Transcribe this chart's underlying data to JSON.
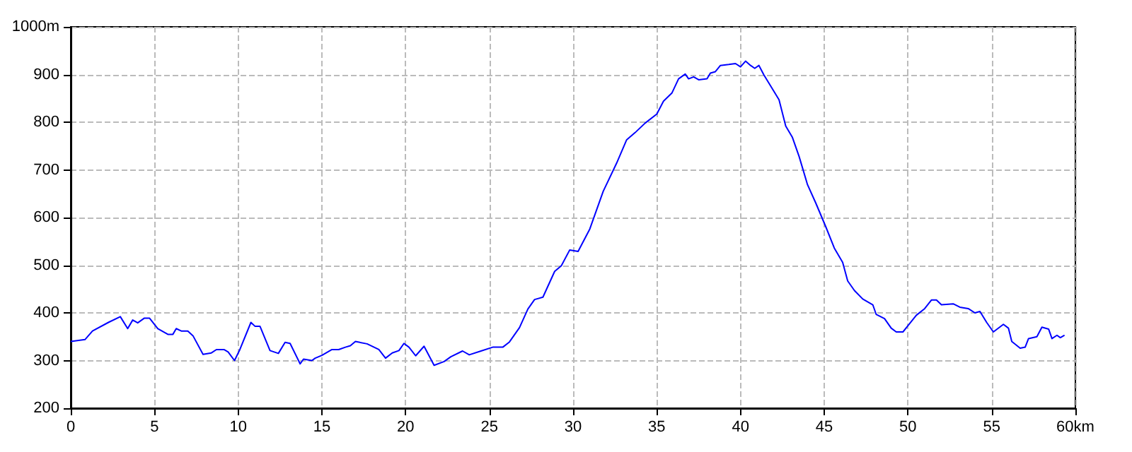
{
  "chart_data": {
    "type": "line",
    "color": "#0000ff",
    "marker": "none",
    "line_style": "solid",
    "grid": true,
    "x": [
      0,
      0.85,
      1.3,
      2.25,
      2.96,
      3.4,
      3.7,
      4.0,
      4.4,
      4.7,
      5.2,
      5.8,
      6.1,
      6.3,
      6.6,
      6.99,
      7.3,
      7.9,
      8.4,
      8.7,
      9.15,
      9.4,
      9.78,
      10.1,
      10.76,
      11.0,
      11.3,
      11.9,
      12.4,
      12.8,
      13.1,
      13.7,
      13.9,
      14.4,
      14.6,
      15.0,
      15.6,
      16.0,
      16.4,
      16.7,
      17.0,
      17.7,
      18.4,
      18.8,
      19.2,
      19.6,
      19.9,
      20.2,
      20.6,
      21.1,
      21.7,
      22.3,
      22.7,
      23.4,
      23.8,
      24.5,
      25.2,
      25.8,
      26.2,
      26.8,
      27.3,
      27.7,
      28.2,
      28.9,
      29.3,
      29.8,
      30.3,
      31.0,
      31.8,
      32.6,
      33.2,
      33.7,
      34.3,
      35.0,
      35.4,
      35.9,
      36.3,
      36.7,
      36.9,
      37.2,
      37.5,
      38.0,
      38.2,
      38.5,
      38.8,
      39.3,
      39.7,
      40.0,
      40.3,
      40.6,
      40.85,
      41.1,
      41.4,
      41.8,
      42.3,
      42.7,
      43.1,
      43.5,
      44.0,
      44.5,
      45.1,
      45.6,
      46.1,
      46.4,
      46.8,
      47.3,
      47.9,
      48.1,
      48.6,
      49.0,
      49.3,
      49.7,
      50.0,
      50.5,
      51.0,
      51.4,
      51.7,
      52.0,
      52.7,
      53.1,
      53.6,
      54.0,
      54.3,
      54.7,
      55.1,
      55.7,
      56.0,
      56.2,
      56.7,
      57.0,
      57.2,
      57.7,
      58.0,
      58.4,
      58.6,
      58.9,
      59.1,
      59.35
    ],
    "values": [
      340,
      344,
      362,
      380,
      392,
      367,
      385,
      379,
      389,
      389,
      367,
      355,
      355,
      367,
      362,
      362,
      352,
      313,
      316,
      323,
      323,
      318,
      300,
      323,
      380,
      372,
      372,
      321,
      315,
      338,
      336,
      293,
      303,
      300,
      305,
      311,
      323,
      323,
      328,
      331,
      340,
      335,
      323,
      305,
      316,
      321,
      336,
      328,
      310,
      330,
      290,
      298,
      308,
      320,
      312,
      320,
      328,
      328,
      339,
      369,
      408,
      428,
      433,
      487,
      499,
      532,
      529,
      576,
      655,
      714,
      763,
      778,
      798,
      817,
      844,
      861,
      891,
      901,
      891,
      895,
      889,
      891,
      903,
      906,
      919,
      921,
      923,
      916,
      928,
      919,
      913,
      919,
      899,
      876,
      847,
      792,
      768,
      728,
      669,
      630,
      580,
      536,
      506,
      467,
      447,
      429,
      417,
      397,
      388,
      368,
      360,
      360,
      373,
      395,
      409,
      427,
      427,
      417,
      419,
      412,
      409,
      400,
      403,
      380,
      360,
      376,
      368,
      340,
      326,
      328,
      346,
      350,
      370,
      366,
      346,
      353,
      348,
      353
    ],
    "xlim": [
      0,
      60
    ],
    "xticks": [
      0,
      5,
      10,
      15,
      20,
      25,
      30,
      35,
      40,
      45,
      50,
      55,
      {
        "value": 60,
        "label": "60km"
      }
    ],
    "ylim": [
      200,
      1000
    ],
    "yticks": [
      200,
      300,
      400,
      500,
      600,
      700,
      800,
      900,
      {
        "value": 1000,
        "label": "1000m"
      }
    ]
  }
}
